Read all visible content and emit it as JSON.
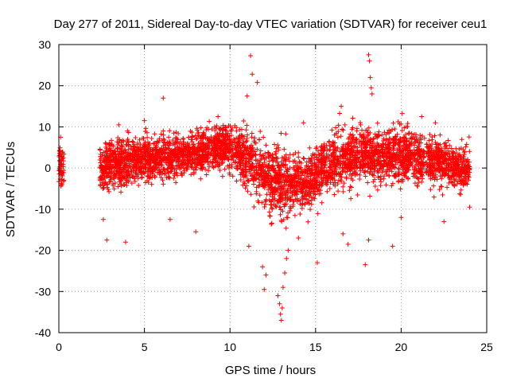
{
  "chart_data": {
    "type": "scatter",
    "title": "Day 277 of 2011, Sidereal Day-to-day VTEC variation (SDTVAR) for receiver ceu1",
    "xlabel": "GPS time / hours",
    "ylabel": "SDTVAR / TECUs",
    "xlim": [
      0,
      25
    ],
    "ylim": [
      -40,
      30
    ],
    "xticks": [
      0,
      5,
      10,
      15,
      20,
      25
    ],
    "yticks": [
      -40,
      -30,
      -20,
      -10,
      0,
      10,
      20,
      30
    ],
    "xtick_labels": [
      "0",
      "5",
      "10",
      "15",
      "20",
      "25"
    ],
    "ytick_labels": [
      "-40",
      "-30",
      "-20",
      "-10",
      "0",
      "10",
      "20",
      "30"
    ],
    "grid": true,
    "marker": "+",
    "color": "#ff0000",
    "series": [
      {
        "name": "SDTVAR",
        "envelope": [
          {
            "x": 0.0,
            "mean": 0.5,
            "spread": 4.0
          },
          {
            "x": 0.3,
            "mean": 0.5,
            "spread": 4.0
          },
          {
            "x": 2.5,
            "mean": 0.0,
            "spread": 4.0
          },
          {
            "x": 3.0,
            "mean": 1.0,
            "spread": 5.0
          },
          {
            "x": 5.0,
            "mean": 2.0,
            "spread": 4.5
          },
          {
            "x": 8.0,
            "mean": 3.5,
            "spread": 4.0
          },
          {
            "x": 9.5,
            "mean": 5.5,
            "spread": 4.5
          },
          {
            "x": 10.5,
            "mean": 4.0,
            "spread": 5.0
          },
          {
            "x": 11.5,
            "mean": 0.0,
            "spread": 6.0
          },
          {
            "x": 12.5,
            "mean": -3.0,
            "spread": 7.0
          },
          {
            "x": 13.5,
            "mean": -4.0,
            "spread": 6.0
          },
          {
            "x": 14.5,
            "mean": -3.0,
            "spread": 5.0
          },
          {
            "x": 15.5,
            "mean": 0.0,
            "spread": 5.5
          },
          {
            "x": 16.5,
            "mean": 3.0,
            "spread": 5.5
          },
          {
            "x": 18.0,
            "mean": 3.0,
            "spread": 5.5
          },
          {
            "x": 20.0,
            "mean": 3.0,
            "spread": 5.0
          },
          {
            "x": 22.0,
            "mean": 2.0,
            "spread": 5.0
          },
          {
            "x": 23.5,
            "mean": 0.0,
            "spread": 4.0
          },
          {
            "x": 24.0,
            "mean": 0.0,
            "spread": 4.0
          }
        ],
        "data_ranges": [
          [
            0.0,
            0.3
          ],
          [
            2.4,
            24.0
          ]
        ],
        "outliers": [
          {
            "x": 0.1,
            "y": 7.5
          },
          {
            "x": 2.6,
            "y": -12.5
          },
          {
            "x": 2.8,
            "y": -17.5
          },
          {
            "x": 3.9,
            "y": -18.0
          },
          {
            "x": 6.1,
            "y": 17.0
          },
          {
            "x": 6.5,
            "y": -12.5
          },
          {
            "x": 8.0,
            "y": -15.5
          },
          {
            "x": 11.2,
            "y": 27.3
          },
          {
            "x": 11.3,
            "y": 22.8
          },
          {
            "x": 11.6,
            "y": 20.8
          },
          {
            "x": 11.0,
            "y": 17.5
          },
          {
            "x": 11.1,
            "y": -19.0
          },
          {
            "x": 11.9,
            "y": -24.0
          },
          {
            "x": 12.0,
            "y": -29.5
          },
          {
            "x": 12.1,
            "y": -26.0
          },
          {
            "x": 12.8,
            "y": -31.0
          },
          {
            "x": 12.9,
            "y": -33.0
          },
          {
            "x": 12.95,
            "y": -35.5
          },
          {
            "x": 13.0,
            "y": -37.0
          },
          {
            "x": 13.05,
            "y": -34.0
          },
          {
            "x": 13.1,
            "y": -29.0
          },
          {
            "x": 13.2,
            "y": -25.5
          },
          {
            "x": 13.3,
            "y": -22.0
          },
          {
            "x": 13.4,
            "y": -20.0
          },
          {
            "x": 14.0,
            "y": -17.0
          },
          {
            "x": 15.1,
            "y": -23.0
          },
          {
            "x": 16.5,
            "y": 15.0
          },
          {
            "x": 16.6,
            "y": -16.0
          },
          {
            "x": 16.9,
            "y": -18.5
          },
          {
            "x": 17.9,
            "y": -23.5
          },
          {
            "x": 18.1,
            "y": 27.5
          },
          {
            "x": 18.15,
            "y": 26.0
          },
          {
            "x": 18.2,
            "y": 22.0
          },
          {
            "x": 18.25,
            "y": 19.5
          },
          {
            "x": 18.3,
            "y": 18.0
          },
          {
            "x": 18.1,
            "y": -17.5
          },
          {
            "x": 19.5,
            "y": -19.0
          },
          {
            "x": 20.0,
            "y": -12.0
          },
          {
            "x": 21.2,
            "y": 12.5
          },
          {
            "x": 22.0,
            "y": 11.0
          },
          {
            "x": 22.5,
            "y": -13.0
          },
          {
            "x": 24.0,
            "y": -9.5
          },
          {
            "x": 5.0,
            "y": 11.5
          },
          {
            "x": 3.5,
            "y": 10.5
          },
          {
            "x": 14.3,
            "y": 11.0
          },
          {
            "x": 9.3,
            "y": 12.5
          }
        ]
      }
    ]
  }
}
